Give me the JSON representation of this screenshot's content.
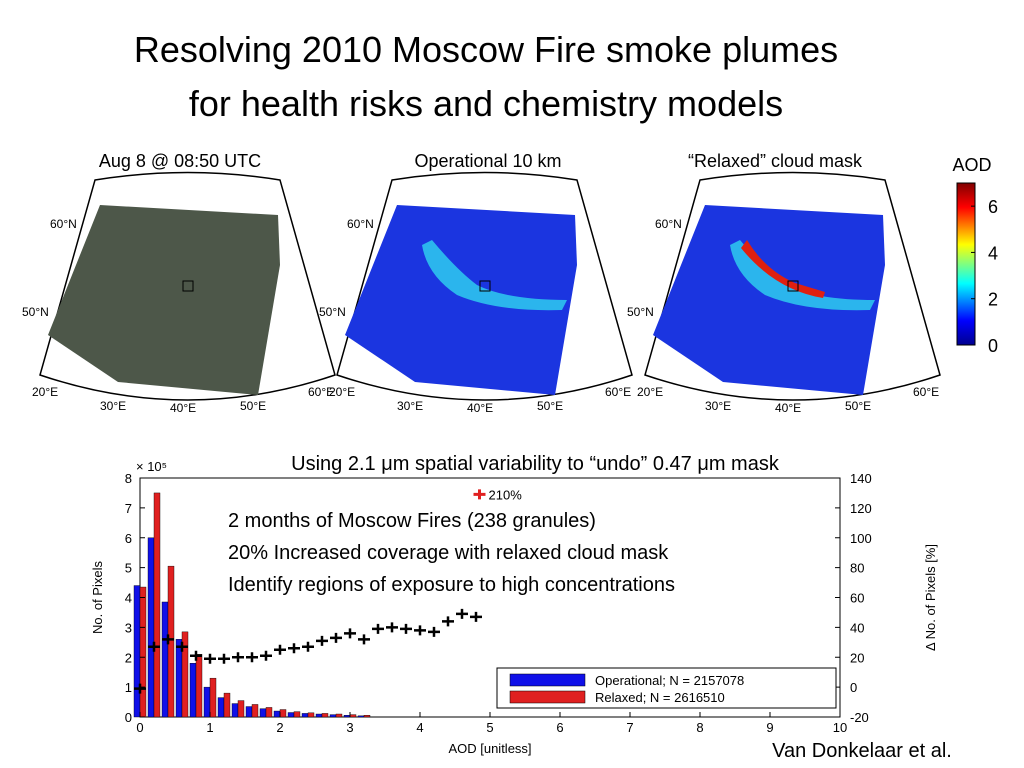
{
  "title_lines": [
    "Resolving 2010 Moscow Fire smoke plumes",
    "for health risks and chemistry models"
  ],
  "map_titles": [
    "Aug 8 @ 08:50 UTC",
    "Operational 10 km",
    "“Relaxed” cloud mask"
  ],
  "map_labels": {
    "lat": [
      "60°N",
      "50°N"
    ],
    "lon": [
      "20°E",
      "30°E",
      "40°E",
      "50°E",
      "60°E"
    ]
  },
  "colorbar": {
    "label": "AOD",
    "lim": [
      0,
      7
    ],
    "ticks": [
      0,
      2,
      4,
      6
    ]
  },
  "credit": "Van Donkelaar et al.",
  "chart_data": {
    "type": "bar",
    "title": "Using 2.1 μm spatial variability to “undo” 0.47 μm mask",
    "notes": [
      "2 months of Moscow Fires (238 granules)",
      "20% Increased coverage with relaxed cloud mask",
      "Identify regions of exposure to high concentrations"
    ],
    "xlabel": "AOD [unitless]",
    "ylabel": "No. of Pixels",
    "y_scale_label": "× 10⁵",
    "y2label": "Δ No. of Pixels [%]",
    "x": [
      0,
      0.2,
      0.4,
      0.6,
      0.8,
      1.0,
      1.2,
      1.4,
      1.6,
      1.8,
      2.0,
      2.2,
      2.4,
      2.6,
      2.8,
      3.0,
      3.2
    ],
    "series": [
      {
        "name": "Operational; N = 2157078",
        "color": "#1010e8",
        "values": [
          4.4,
          6.0,
          3.85,
          2.6,
          1.8,
          1.0,
          0.65,
          0.45,
          0.35,
          0.28,
          0.2,
          0.15,
          0.12,
          0.1,
          0.08,
          0.06,
          0.04
        ]
      },
      {
        "name": "Relaxed; N = 2616510",
        "color": "#e02020",
        "values": [
          4.35,
          7.5,
          5.05,
          2.85,
          2.1,
          1.3,
          0.8,
          0.55,
          0.42,
          0.32,
          0.25,
          0.18,
          0.14,
          0.12,
          0.1,
          0.08,
          0.06
        ]
      }
    ],
    "delta": {
      "axis": "y2",
      "color": "#000000",
      "x": [
        0,
        0.2,
        0.4,
        0.6,
        0.8,
        1.0,
        1.2,
        1.4,
        1.6,
        1.8,
        2.0,
        2.2,
        2.4,
        2.6,
        2.8,
        3.0,
        3.2,
        3.4,
        3.6,
        3.8,
        4.0,
        4.2,
        4.4,
        4.6,
        4.8
      ],
      "values": [
        -1,
        27,
        32,
        27,
        21,
        19,
        19,
        20,
        20,
        21,
        25,
        26,
        27,
        31,
        33,
        36,
        32,
        39,
        40,
        39,
        38,
        37,
        44,
        49,
        47
      ]
    },
    "annotation": {
      "text": "210%",
      "x": 4.85,
      "y2": 129,
      "color": "#e02020"
    },
    "xlim": [
      0,
      10
    ],
    "xticks": [
      0,
      1,
      2,
      3,
      4,
      5,
      6,
      7,
      8,
      9,
      10
    ],
    "ylim": [
      0,
      8
    ],
    "yticks": [
      0,
      1,
      2,
      3,
      4,
      5,
      6,
      7,
      8
    ],
    "y2lim": [
      -20,
      140
    ],
    "y2ticks": [
      -20,
      0,
      20,
      40,
      60,
      80,
      100,
      120,
      140
    ],
    "legend": "lower right"
  }
}
